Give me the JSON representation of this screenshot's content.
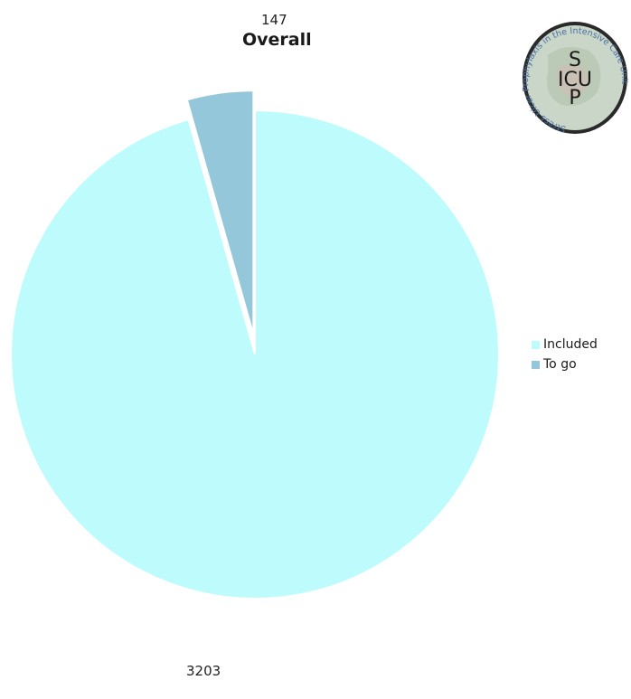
{
  "chart_data": {
    "type": "pie",
    "title": "Overall",
    "slices": [
      {
        "label": "Included",
        "value": 3203,
        "color": "#BDFBFD"
      },
      {
        "label": "To go",
        "value": 147,
        "color": "#93C7D9"
      }
    ],
    "exploded": "To go",
    "legend_position": "right"
  },
  "logo": {
    "text": "Stress Ulcer Prophylaxis in the Intensive Care Unit",
    "initials": [
      "S",
      "ICU",
      "P"
    ]
  }
}
